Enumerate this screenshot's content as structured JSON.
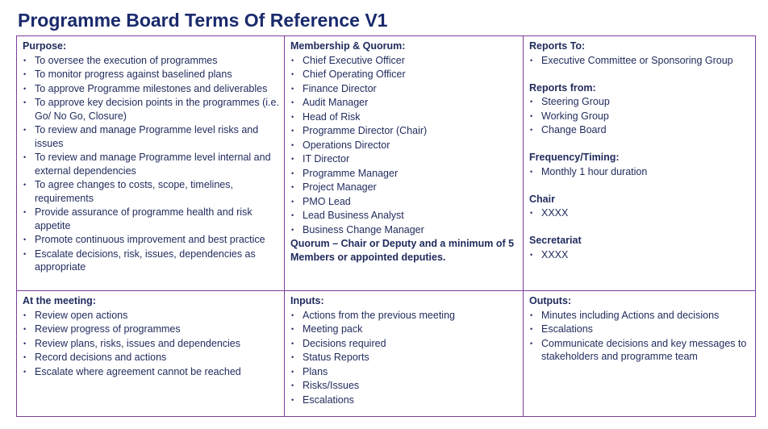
{
  "title": "Programme Board Terms Of Reference V1",
  "cells": [
    {
      "sections": [
        {
          "heading": "Purpose:",
          "items": [
            "To oversee the execution of programmes",
            "To monitor progress against baselined plans",
            "To approve Programme milestones and deliverables",
            "To approve key decision points in the programmes (i.e. Go/ No Go, Closure)",
            "To review and manage Programme level risks and issues",
            "To review and manage Programme level internal and external dependencies",
            "To agree changes to costs, scope, timelines, requirements",
            "Provide assurance of programme health and risk appetite",
            "Promote continuous improvement and best practice",
            "Escalate decisions, risk, issues, dependencies as appropriate"
          ]
        }
      ]
    },
    {
      "sections": [
        {
          "heading": "Membership & Quorum:",
          "items": [
            "Chief Executive Officer",
            "Chief Operating Officer",
            "Finance Director",
            "Audit Manager",
            "Head of Risk",
            "Programme Director (Chair)",
            "Operations Director",
            "IT Director",
            "Programme Manager",
            "Project Manager",
            "PMO Lead",
            "Lead Business Analyst",
            "Business Change Manager"
          ],
          "note": "Quorum – Chair or Deputy and a minimum of 5 Members or appointed deputies."
        }
      ]
    },
    {
      "sections": [
        {
          "heading": "Reports To:",
          "items": [
            "Executive Committee or Sponsoring Group"
          ]
        },
        {
          "heading": "Reports from:",
          "items": [
            "Steering Group",
            "Working Group",
            "Change Board"
          ]
        },
        {
          "heading": "Frequency/Timing:",
          "items": [
            "Monthly 1 hour duration"
          ]
        },
        {
          "heading": "Chair",
          "items": [
            "XXXX"
          ]
        },
        {
          "heading": "Secretariat",
          "items": [
            "XXXX"
          ]
        }
      ]
    },
    {
      "sections": [
        {
          "heading": "At the meeting:",
          "items": [
            "Review open actions",
            "Review progress of programmes",
            "Review plans, risks, issues and dependencies",
            "Record decisions and actions",
            "Escalate where agreement cannot be reached"
          ]
        }
      ]
    },
    {
      "sections": [
        {
          "heading": "Inputs:",
          "items": [
            "Actions from the previous meeting",
            "Meeting pack",
            "Decisions required",
            "Status Reports",
            "Plans",
            "Risks/Issues",
            "Escalations"
          ]
        }
      ]
    },
    {
      "sections": [
        {
          "heading": "Outputs:",
          "items": [
            "Minutes including Actions and decisions",
            "Escalations",
            "Communicate decisions and key messages to stakeholders and programme team"
          ]
        }
      ]
    }
  ]
}
